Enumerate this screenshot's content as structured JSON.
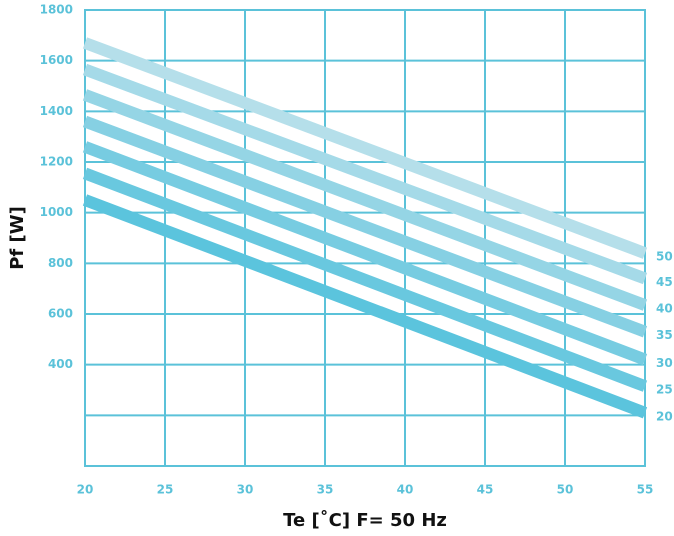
{
  "chart_data": {
    "type": "line",
    "xlabel": "Te [˚C] F= 50 Hz",
    "ylabel": "Pf [W]",
    "x": [
      20,
      55
    ],
    "series": [
      {
        "name": "20",
        "color": "#5bc4dd",
        "values": [
          1050,
          210
        ]
      },
      {
        "name": "25",
        "color": "#69c8df",
        "values": [
          1155,
          315
        ]
      },
      {
        "name": "30",
        "color": "#77cce1",
        "values": [
          1260,
          420
        ]
      },
      {
        "name": "35",
        "color": "#86d0e3",
        "values": [
          1360,
          530
        ]
      },
      {
        "name": "40",
        "color": "#95d5e5",
        "values": [
          1465,
          635
        ]
      },
      {
        "name": "45",
        "color": "#a5dae8",
        "values": [
          1565,
          740
        ]
      },
      {
        "name": "50",
        "color": "#b5dfea",
        "values": [
          1670,
          840
        ]
      }
    ],
    "xlim": [
      20,
      55
    ],
    "xticks": [
      20,
      25,
      30,
      35,
      40,
      45,
      50,
      55
    ],
    "ylim": [
      0,
      1800
    ],
    "yticks": [
      400,
      600,
      800,
      1000,
      1200,
      1400,
      1600,
      1800
    ],
    "ygrid_unlabeled": [
      200
    ],
    "grid": true,
    "grid_color": "#5bc2d9"
  }
}
